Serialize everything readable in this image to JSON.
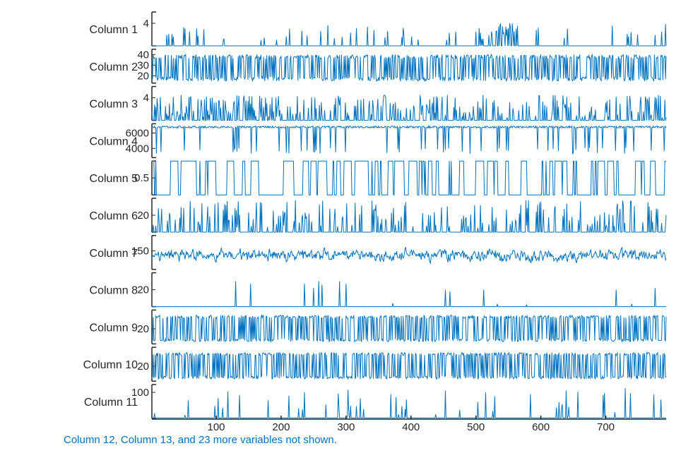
{
  "chart_data": {
    "type": "line",
    "layout": "stacked-plot",
    "line_color": "#0072BD",
    "axis_color": "#262626",
    "x_range": [
      1,
      793
    ],
    "x_ticks": [
      100,
      200,
      300,
      400,
      500,
      600,
      700
    ],
    "rows": [
      {
        "label": "Column 1",
        "ytick": "4",
        "ylim": [
          0,
          6
        ],
        "kind": "spike",
        "baseline": 0,
        "spike_prob": 0.07,
        "spike_min": 1,
        "spike_max": 4,
        "seed": 11,
        "dense_range": [
          505,
          560
        ]
      },
      {
        "label": "Column 2",
        "ytick": [
          "40",
          "30",
          "20"
        ],
        "ylim": [
          13,
          45
        ],
        "kind": "binary_noise",
        "low": 15,
        "high": 40,
        "seed": 22
      },
      {
        "label": "Column 3",
        "ytick": "4",
        "ylim": [
          0,
          6
        ],
        "kind": "spike",
        "baseline": 0,
        "spike_prob": 0.35,
        "spike_min": 0.5,
        "spike_max": 4.5,
        "seed": 33
      },
      {
        "label": "Column 4",
        "ytick": [
          "6000",
          "4000"
        ],
        "ylim": [
          2800,
          7200
        ],
        "kind": "dips",
        "baseline": 6900,
        "dip_prob": 0.09,
        "dip_value": 3300,
        "seed": 44
      },
      {
        "label": "Column 5",
        "ytick": "0.5",
        "ylim": [
          0,
          1
        ],
        "kind": "binary_runs",
        "low": 0,
        "high": 1,
        "seed": 55
      },
      {
        "label": "Column 6",
        "ytick": "20",
        "ylim": [
          0,
          40
        ],
        "kind": "spike",
        "baseline": 0,
        "spike_prob": 0.22,
        "spike_min": 5,
        "spike_max": 38,
        "seed": 66
      },
      {
        "label": "Column 7",
        "ytick": "150",
        "ylim": [
          90,
          200
        ],
        "kind": "noise",
        "mean": 135,
        "amp": 45,
        "seed": 77
      },
      {
        "label": "Column 8",
        "ytick": "20",
        "ylim": [
          0,
          40
        ],
        "kind": "sparse",
        "baseline": 0,
        "spikes": [
          [
            130,
            30
          ],
          [
            153,
            27
          ],
          [
            236,
            27
          ],
          [
            250,
            22
          ],
          [
            258,
            30
          ],
          [
            263,
            26
          ],
          [
            290,
            30
          ],
          [
            300,
            27
          ],
          [
            372,
            4
          ],
          [
            453,
            20
          ],
          [
            460,
            18
          ],
          [
            512,
            20
          ],
          [
            533,
            3
          ],
          [
            578,
            2
          ],
          [
            716,
            20
          ],
          [
            740,
            3
          ],
          [
            776,
            22
          ]
        ]
      },
      {
        "label": "Column 9",
        "ytick": "20",
        "ylim": [
          0,
          45
        ],
        "kind": "binary_noise",
        "low": 3,
        "high": 38,
        "seed": 99
      },
      {
        "label": "Column 10",
        "ytick": "20",
        "ylim": [
          0,
          45
        ],
        "kind": "binary_noise",
        "low": 3,
        "high": 38,
        "seed": 111
      },
      {
        "label": "Column 11",
        "ytick": "100",
        "ylim": [
          0,
          130
        ],
        "kind": "spike",
        "baseline": 2,
        "spike_prob": 0.05,
        "spike_min": 10,
        "spike_max": 118,
        "seed": 121
      }
    ],
    "note": "Column 12, Column 13, and 23 more variables not shown."
  }
}
